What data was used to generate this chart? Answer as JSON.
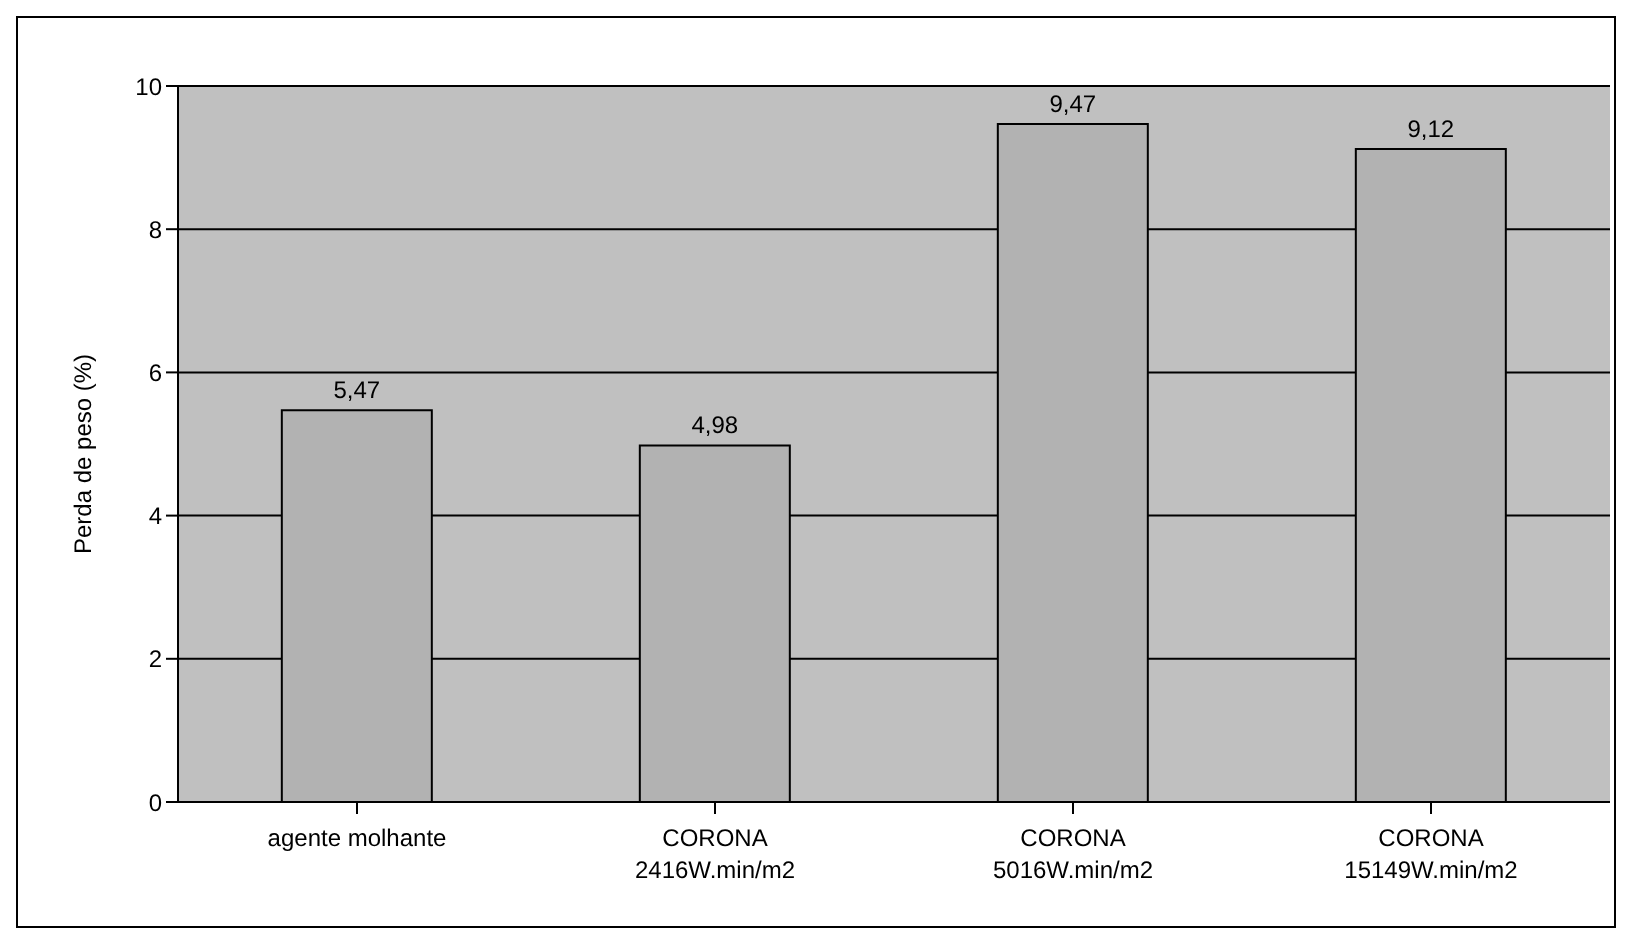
{
  "chart_data": {
    "type": "bar",
    "ylabel": "Perda de peso (%)",
    "categories": [
      "agente molhante",
      "CORONA\n2416W.min/m2",
      "CORONA\n5016W.min/m2",
      "CORONA\n15149W.min/m2"
    ],
    "values": [
      5.47,
      4.98,
      9.47,
      9.12
    ],
    "color": "#b2b2b2",
    "value_labels": [
      "5,47",
      "4,98",
      "9,47",
      "9,12"
    ],
    "ylim": [
      0,
      10
    ],
    "yticks": [
      0,
      2,
      4,
      6,
      8,
      10
    ],
    "grid": "y",
    "legend": false
  }
}
